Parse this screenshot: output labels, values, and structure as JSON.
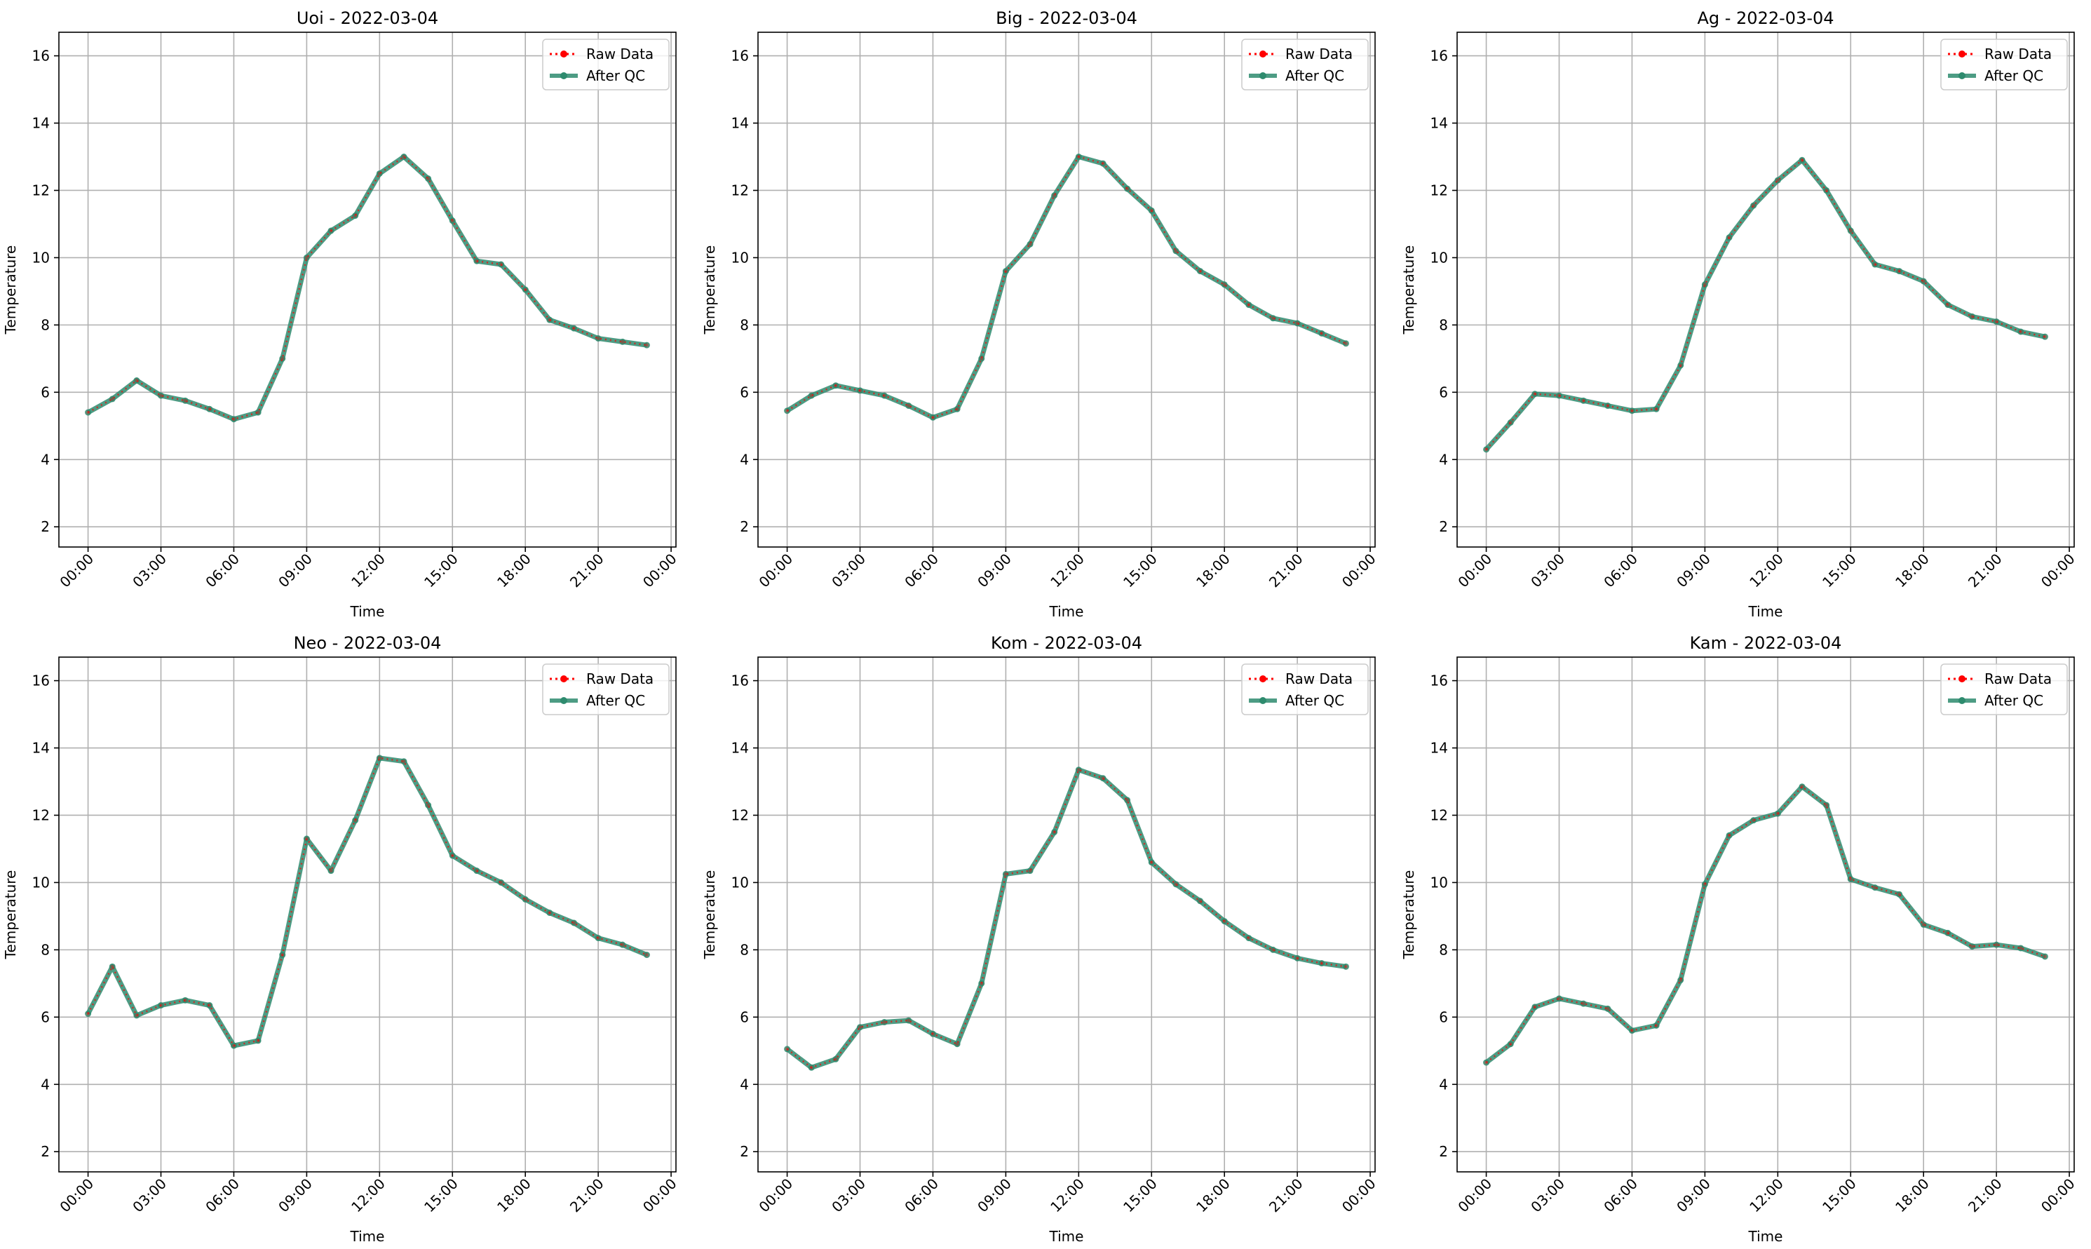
{
  "chart_data": [
    {
      "type": "line",
      "title": "Uoi - 2022-03-04",
      "xlabel": "Time",
      "ylabel": "Temperature",
      "xticks": [
        "00:00",
        "03:00",
        "06:00",
        "09:00",
        "12:00",
        "15:00",
        "18:00",
        "21:00",
        "00:00"
      ],
      "yticks": [
        2,
        4,
        6,
        8,
        10,
        12,
        14,
        16
      ],
      "xlim_hours": [
        -1.2,
        24.2
      ],
      "ylim": [
        1.4,
        16.7
      ],
      "grid": true,
      "legend_position": "top-right",
      "x_hours": [
        0,
        1,
        2,
        3,
        4,
        5,
        6,
        7,
        8,
        9,
        10,
        11,
        12,
        13,
        14,
        15,
        16,
        17,
        18,
        19,
        20,
        21,
        22,
        23
      ],
      "series": [
        {
          "name": "Raw Data",
          "color": "#ff0000",
          "values": [
            5.4,
            5.8,
            6.35,
            5.9,
            5.75,
            5.5,
            5.2,
            5.4,
            7.0,
            10.0,
            10.8,
            11.25,
            12.5,
            13.0,
            12.35,
            11.1,
            9.9,
            9.8,
            9.05,
            8.15,
            7.9,
            7.6,
            7.5,
            7.4
          ]
        },
        {
          "name": "After QC",
          "color": "#2e8b6e",
          "values": [
            5.4,
            5.8,
            6.35,
            5.9,
            5.75,
            5.5,
            5.2,
            5.4,
            7.0,
            10.0,
            10.8,
            11.25,
            12.5,
            13.0,
            12.35,
            11.1,
            9.9,
            9.8,
            9.05,
            8.15,
            7.9,
            7.6,
            7.5,
            7.4
          ]
        }
      ]
    },
    {
      "type": "line",
      "title": "Big - 2022-03-04",
      "xlabel": "Time",
      "ylabel": "Temperature",
      "xticks": [
        "00:00",
        "03:00",
        "06:00",
        "09:00",
        "12:00",
        "15:00",
        "18:00",
        "21:00",
        "00:00"
      ],
      "yticks": [
        2,
        4,
        6,
        8,
        10,
        12,
        14,
        16
      ],
      "xlim_hours": [
        -1.2,
        24.2
      ],
      "ylim": [
        1.4,
        16.7
      ],
      "grid": true,
      "legend_position": "top-right",
      "x_hours": [
        0,
        1,
        2,
        3,
        4,
        5,
        6,
        7,
        8,
        9,
        10,
        11,
        12,
        13,
        14,
        15,
        16,
        17,
        18,
        19,
        20,
        21,
        22,
        23
      ],
      "series": [
        {
          "name": "Raw Data",
          "color": "#ff0000",
          "values": [
            5.45,
            5.9,
            6.2,
            6.05,
            5.9,
            5.6,
            5.25,
            5.5,
            7.0,
            9.6,
            10.4,
            11.85,
            13.0,
            12.8,
            12.05,
            11.4,
            10.2,
            9.6,
            9.2,
            8.6,
            8.2,
            8.05,
            7.75,
            7.45
          ]
        },
        {
          "name": "After QC",
          "color": "#2e8b6e",
          "values": [
            5.45,
            5.9,
            6.2,
            6.05,
            5.9,
            5.6,
            5.25,
            5.5,
            7.0,
            9.6,
            10.4,
            11.85,
            13.0,
            12.8,
            12.05,
            11.4,
            10.2,
            9.6,
            9.2,
            8.6,
            8.2,
            8.05,
            7.75,
            7.45
          ]
        }
      ]
    },
    {
      "type": "line",
      "title": "Ag - 2022-03-04",
      "xlabel": "Time",
      "ylabel": "Temperature",
      "xticks": [
        "00:00",
        "03:00",
        "06:00",
        "09:00",
        "12:00",
        "15:00",
        "18:00",
        "21:00",
        "00:00"
      ],
      "yticks": [
        2,
        4,
        6,
        8,
        10,
        12,
        14,
        16
      ],
      "xlim_hours": [
        -1.2,
        24.2
      ],
      "ylim": [
        1.4,
        16.7
      ],
      "grid": true,
      "legend_position": "top-right",
      "x_hours": [
        0,
        1,
        2,
        3,
        4,
        5,
        6,
        7,
        8,
        9,
        10,
        11,
        12,
        13,
        14,
        15,
        16,
        17,
        18,
        19,
        20,
        21,
        22,
        23
      ],
      "series": [
        {
          "name": "Raw Data",
          "color": "#ff0000",
          "values": [
            4.3,
            5.1,
            5.95,
            5.9,
            5.75,
            5.6,
            5.45,
            5.5,
            6.8,
            9.2,
            10.6,
            11.55,
            12.3,
            12.9,
            12.0,
            10.8,
            9.8,
            9.6,
            9.3,
            8.6,
            8.25,
            8.1,
            7.8,
            7.65
          ]
        },
        {
          "name": "After QC",
          "color": "#2e8b6e",
          "values": [
            4.3,
            5.1,
            5.95,
            5.9,
            5.75,
            5.6,
            5.45,
            5.5,
            6.8,
            9.2,
            10.6,
            11.55,
            12.3,
            12.9,
            12.0,
            10.8,
            9.8,
            9.6,
            9.3,
            8.6,
            8.25,
            8.1,
            7.8,
            7.65
          ]
        }
      ]
    },
    {
      "type": "line",
      "title": "Neo - 2022-03-04",
      "xlabel": "Time",
      "ylabel": "Temperature",
      "xticks": [
        "00:00",
        "03:00",
        "06:00",
        "09:00",
        "12:00",
        "15:00",
        "18:00",
        "21:00",
        "00:00"
      ],
      "yticks": [
        2,
        4,
        6,
        8,
        10,
        12,
        14,
        16
      ],
      "xlim_hours": [
        -1.2,
        24.2
      ],
      "ylim": [
        1.4,
        16.7
      ],
      "grid": true,
      "legend_position": "top-right",
      "x_hours": [
        0,
        1,
        2,
        3,
        4,
        5,
        6,
        7,
        8,
        9,
        10,
        11,
        12,
        13,
        14,
        15,
        16,
        17,
        18,
        19,
        20,
        21,
        22,
        23
      ],
      "series": [
        {
          "name": "Raw Data",
          "color": "#ff0000",
          "values": [
            6.1,
            7.5,
            6.05,
            6.35,
            6.5,
            6.35,
            5.15,
            5.3,
            7.85,
            11.3,
            10.35,
            11.85,
            13.7,
            13.6,
            12.3,
            10.8,
            10.35,
            10.0,
            9.5,
            9.1,
            8.8,
            8.35,
            8.15,
            7.85
          ]
        },
        {
          "name": "After QC",
          "color": "#2e8b6e",
          "values": [
            6.1,
            7.5,
            6.05,
            6.35,
            6.5,
            6.35,
            5.15,
            5.3,
            7.85,
            11.3,
            10.35,
            11.85,
            13.7,
            13.6,
            12.3,
            10.8,
            10.35,
            10.0,
            9.5,
            9.1,
            8.8,
            8.35,
            8.15,
            7.85
          ]
        }
      ]
    },
    {
      "type": "line",
      "title": "Kom - 2022-03-04",
      "xlabel": "Time",
      "ylabel": "Temperature",
      "xticks": [
        "00:00",
        "03:00",
        "06:00",
        "09:00",
        "12:00",
        "15:00",
        "18:00",
        "21:00",
        "00:00"
      ],
      "yticks": [
        2,
        4,
        6,
        8,
        10,
        12,
        14,
        16
      ],
      "xlim_hours": [
        -1.2,
        24.2
      ],
      "ylim": [
        1.4,
        16.7
      ],
      "grid": true,
      "legend_position": "top-right",
      "x_hours": [
        0,
        1,
        2,
        3,
        4,
        5,
        6,
        7,
        8,
        9,
        10,
        11,
        12,
        13,
        14,
        15,
        16,
        17,
        18,
        19,
        20,
        21,
        22,
        23
      ],
      "series": [
        {
          "name": "Raw Data",
          "color": "#ff0000",
          "values": [
            5.05,
            4.5,
            4.75,
            5.7,
            5.85,
            5.9,
            5.5,
            5.2,
            7.0,
            10.25,
            10.35,
            11.5,
            13.35,
            13.1,
            12.45,
            10.6,
            9.95,
            9.45,
            8.85,
            8.35,
            8.0,
            7.75,
            7.6,
            7.5
          ]
        },
        {
          "name": "After QC",
          "color": "#2e8b6e",
          "values": [
            5.05,
            4.5,
            4.75,
            5.7,
            5.85,
            5.9,
            5.5,
            5.2,
            7.0,
            10.25,
            10.35,
            11.5,
            13.35,
            13.1,
            12.45,
            10.6,
            9.95,
            9.45,
            8.85,
            8.35,
            8.0,
            7.75,
            7.6,
            7.5
          ]
        }
      ]
    },
    {
      "type": "line",
      "title": "Kam - 2022-03-04",
      "xlabel": "Time",
      "ylabel": "Temperature",
      "xticks": [
        "00:00",
        "03:00",
        "06:00",
        "09:00",
        "12:00",
        "15:00",
        "18:00",
        "21:00",
        "00:00"
      ],
      "yticks": [
        2,
        4,
        6,
        8,
        10,
        12,
        14,
        16
      ],
      "xlim_hours": [
        -1.2,
        24.2
      ],
      "ylim": [
        1.4,
        16.7
      ],
      "grid": true,
      "legend_position": "top-right",
      "x_hours": [
        0,
        1,
        2,
        3,
        4,
        5,
        6,
        7,
        8,
        9,
        10,
        11,
        12,
        13,
        14,
        15,
        16,
        17,
        18,
        19,
        20,
        21,
        22,
        23
      ],
      "series": [
        {
          "name": "Raw Data",
          "color": "#ff0000",
          "values": [
            4.65,
            5.2,
            6.3,
            6.55,
            6.4,
            6.25,
            5.6,
            5.75,
            7.1,
            9.95,
            11.4,
            11.85,
            12.05,
            12.85,
            12.3,
            10.1,
            9.85,
            9.65,
            8.75,
            8.5,
            8.1,
            8.15,
            8.05,
            7.8
          ]
        },
        {
          "name": "After QC",
          "color": "#2e8b6e",
          "values": [
            4.65,
            5.2,
            6.3,
            6.55,
            6.4,
            6.25,
            5.6,
            5.75,
            7.1,
            9.95,
            11.4,
            11.85,
            12.05,
            12.85,
            12.3,
            10.1,
            9.85,
            9.65,
            8.75,
            8.5,
            8.1,
            8.15,
            8.05,
            7.8
          ]
        }
      ]
    }
  ]
}
